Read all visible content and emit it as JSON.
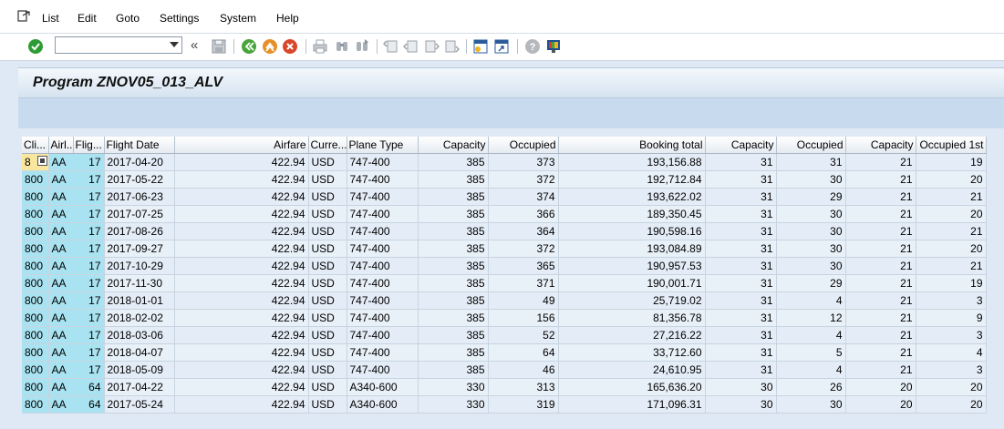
{
  "menu": {
    "items": [
      "List",
      "Edit",
      "Goto",
      "Settings",
      "System",
      "Help"
    ]
  },
  "toolbar": {
    "command_value": "",
    "back_chevron": "«"
  },
  "title": "Program ZNOV05_013_ALV",
  "grid": {
    "columns": [
      "Cli...",
      "Airl...",
      "Flig...",
      "Flight Date",
      "Airfare",
      "Curre...",
      "Plane Type",
      "Capacity",
      "Occupied",
      "Booking total",
      "Capacity",
      "Occupied",
      "Capacity",
      "Occupied 1st"
    ],
    "rows": [
      [
        "8",
        "AA",
        "17",
        "2017-04-20",
        "422.94",
        "USD",
        "747-400",
        "385",
        "373",
        "193,156.88",
        "31",
        "31",
        "21",
        "19"
      ],
      [
        "800",
        "AA",
        "17",
        "2017-05-22",
        "422.94",
        "USD",
        "747-400",
        "385",
        "372",
        "192,712.84",
        "31",
        "30",
        "21",
        "20"
      ],
      [
        "800",
        "AA",
        "17",
        "2017-06-23",
        "422.94",
        "USD",
        "747-400",
        "385",
        "374",
        "193,622.02",
        "31",
        "29",
        "21",
        "21"
      ],
      [
        "800",
        "AA",
        "17",
        "2017-07-25",
        "422.94",
        "USD",
        "747-400",
        "385",
        "366",
        "189,350.45",
        "31",
        "30",
        "21",
        "20"
      ],
      [
        "800",
        "AA",
        "17",
        "2017-08-26",
        "422.94",
        "USD",
        "747-400",
        "385",
        "364",
        "190,598.16",
        "31",
        "30",
        "21",
        "21"
      ],
      [
        "800",
        "AA",
        "17",
        "2017-09-27",
        "422.94",
        "USD",
        "747-400",
        "385",
        "372",
        "193,084.89",
        "31",
        "30",
        "21",
        "20"
      ],
      [
        "800",
        "AA",
        "17",
        "2017-10-29",
        "422.94",
        "USD",
        "747-400",
        "385",
        "365",
        "190,957.53",
        "31",
        "30",
        "21",
        "21"
      ],
      [
        "800",
        "AA",
        "17",
        "2017-11-30",
        "422.94",
        "USD",
        "747-400",
        "385",
        "371",
        "190,001.71",
        "31",
        "29",
        "21",
        "19"
      ],
      [
        "800",
        "AA",
        "17",
        "2018-01-01",
        "422.94",
        "USD",
        "747-400",
        "385",
        "49",
        "25,719.02",
        "31",
        "4",
        "21",
        "3"
      ],
      [
        "800",
        "AA",
        "17",
        "2018-02-02",
        "422.94",
        "USD",
        "747-400",
        "385",
        "156",
        "81,356.78",
        "31",
        "12",
        "21",
        "9"
      ],
      [
        "800",
        "AA",
        "17",
        "2018-03-06",
        "422.94",
        "USD",
        "747-400",
        "385",
        "52",
        "27,216.22",
        "31",
        "4",
        "21",
        "3"
      ],
      [
        "800",
        "AA",
        "17",
        "2018-04-07",
        "422.94",
        "USD",
        "747-400",
        "385",
        "64",
        "33,712.60",
        "31",
        "5",
        "21",
        "4"
      ],
      [
        "800",
        "AA",
        "17",
        "2018-05-09",
        "422.94",
        "USD",
        "747-400",
        "385",
        "46",
        "24,610.95",
        "31",
        "4",
        "21",
        "3"
      ],
      [
        "800",
        "AA",
        "64",
        "2017-04-22",
        "422.94",
        "USD",
        "A340-600",
        "330",
        "313",
        "165,636.20",
        "30",
        "26",
        "20",
        "20"
      ],
      [
        "800",
        "AA",
        "64",
        "2017-05-24",
        "422.94",
        "USD",
        "A340-600",
        "330",
        "319",
        "171,096.31",
        "30",
        "30",
        "20",
        "20"
      ]
    ]
  },
  "colors": {
    "key_column_bg": "#a9e3f1",
    "value_column_bg": "#e4edf7",
    "ok_green": "#2e9c35",
    "nav_orange": "#e6902a",
    "cancel_red": "#d9472a"
  }
}
